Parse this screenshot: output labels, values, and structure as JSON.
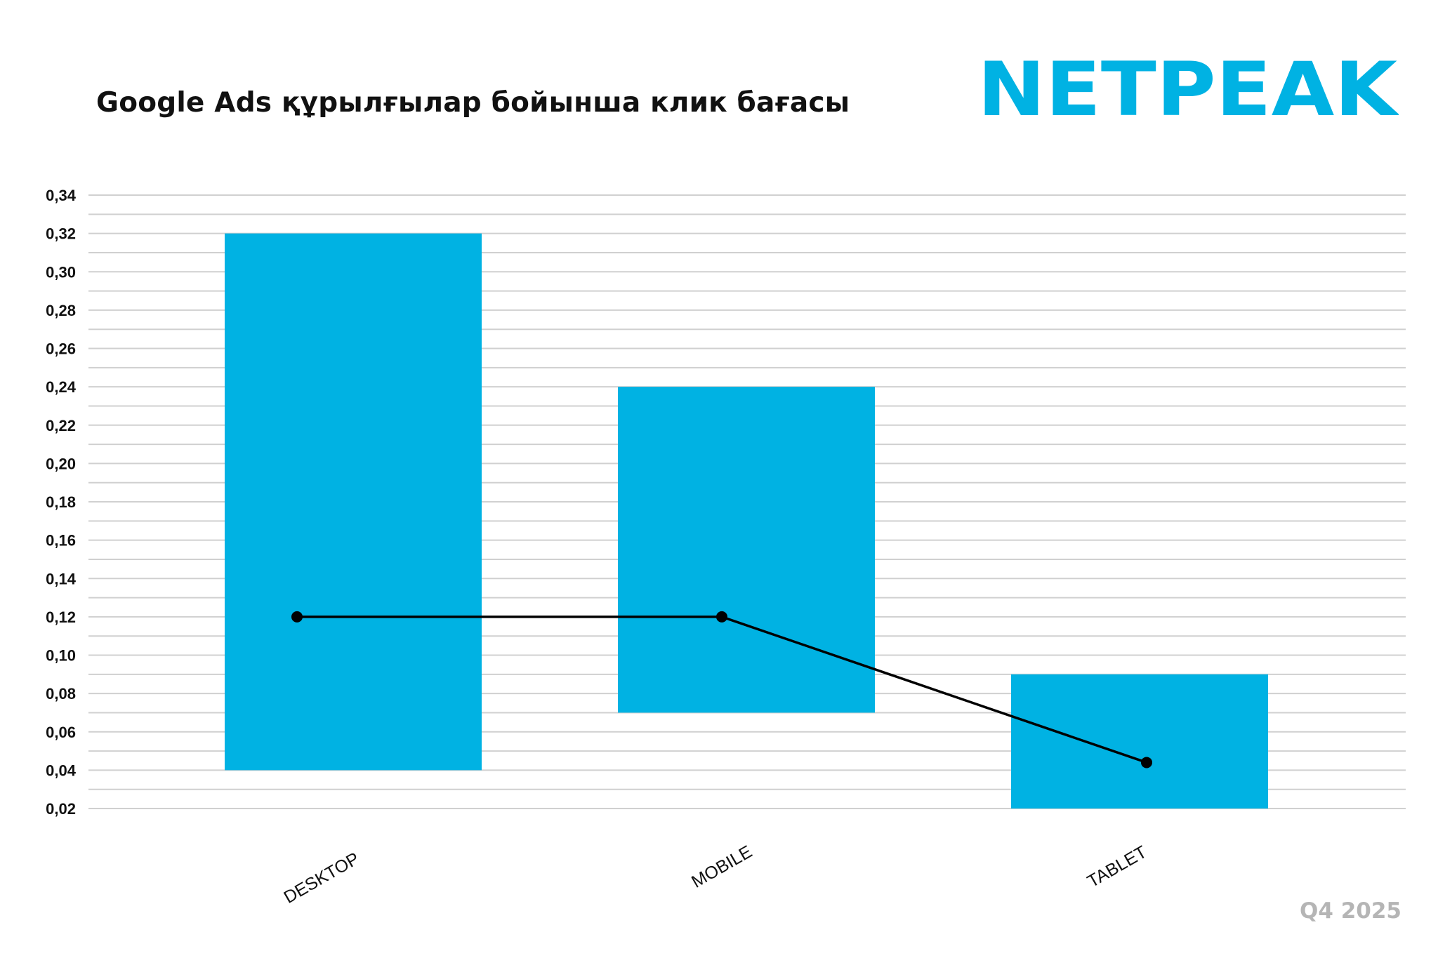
{
  "header": {
    "title": "Google Ads құрылғылар бойынша клик бағасы",
    "logo_text": "NETPEAK",
    "period": "Q4 2025"
  },
  "colors": {
    "bar": "#00b2e3",
    "line": "#000000",
    "grid": "#d0d0d0",
    "brand": "#00b2e3",
    "period": "#b5b5b5"
  },
  "chart_data": {
    "type": "bar",
    "subtype": "floating range bar with line overlay",
    "categories": [
      "DESKTOP",
      "MOBILE",
      "TABLET"
    ],
    "ranges": [
      {
        "low": 0.04,
        "high": 0.32
      },
      {
        "low": 0.07,
        "high": 0.24
      },
      {
        "low": 0.02,
        "high": 0.09
      }
    ],
    "line_values": [
      0.12,
      0.12,
      0.044
    ],
    "y_ticks": [
      "0,34",
      "0,32",
      "0,30",
      "0,28",
      "0,26",
      "0,24",
      "0,22",
      "0,20",
      "0,18",
      "0,16",
      "0,14",
      "0,12",
      "0,10",
      "0,08",
      "0,06",
      "0,04",
      "0,02"
    ],
    "ylim": [
      0.02,
      0.34
    ],
    "grid": true,
    "minor_grid": true,
    "legend": "none",
    "x_label_rotation": -30
  }
}
